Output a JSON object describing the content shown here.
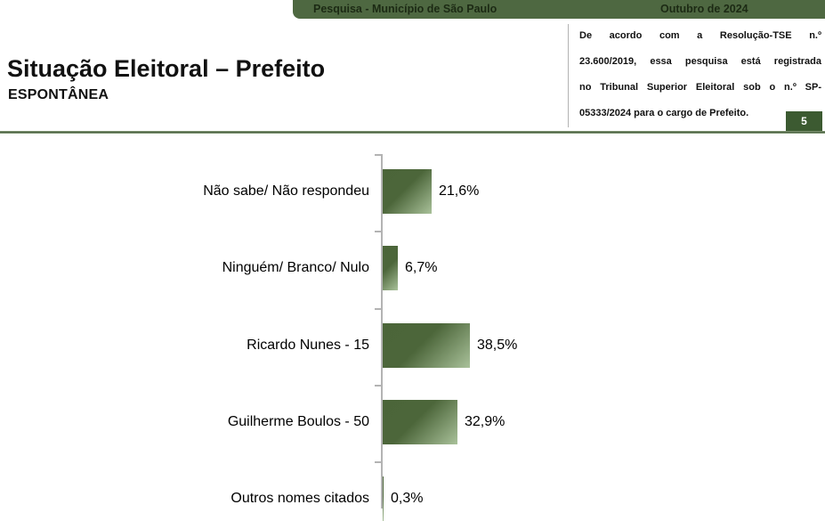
{
  "header": {
    "left": "Pesquisa - Município de São Paulo",
    "right": "Outubro de 2024"
  },
  "title": "Situação Eleitoral – Prefeito",
  "subtitle": "ESPONTÂNEA",
  "disclaimer_lines": [
    "De acordo com a Resolução-TSE n.º",
    "23.600/2019, essa pesquisa está registrada",
    "no Tribunal Superior Eleitoral sob o n.º SP-",
    "05333/2024 para o cargo de Prefeito."
  ],
  "page_number": "5",
  "colors": {
    "header_bar": "#4e6841",
    "page_badge": "#3c5a31",
    "bar_dark": "#4b6539",
    "bar_light": "#a9c19a",
    "axis": "#b3b3b3",
    "rule_dark": "#40543a",
    "rule_light": "#9ab28a"
  },
  "chart_data": {
    "type": "bar",
    "orientation": "horizontal",
    "title": "Situação Eleitoral – Prefeito (Espontânea)",
    "categories": [
      "Não sabe/ Não respondeu",
      "Ninguém/ Branco/ Nulo",
      "Ricardo Nunes - 15",
      "Guilherme Boulos - 50",
      "Outros nomes citados"
    ],
    "values": [
      21.6,
      6.7,
      38.5,
      32.9,
      0.3
    ],
    "value_labels": [
      "21,6%",
      "6,7%",
      "38,5%",
      "32,9%",
      "0,3%"
    ],
    "xlabel": "",
    "ylabel": "",
    "xlim": [
      0,
      100
    ],
    "grid": false,
    "legend": false,
    "bar_gradient": [
      "#4b6539",
      "#a9c19a"
    ]
  }
}
